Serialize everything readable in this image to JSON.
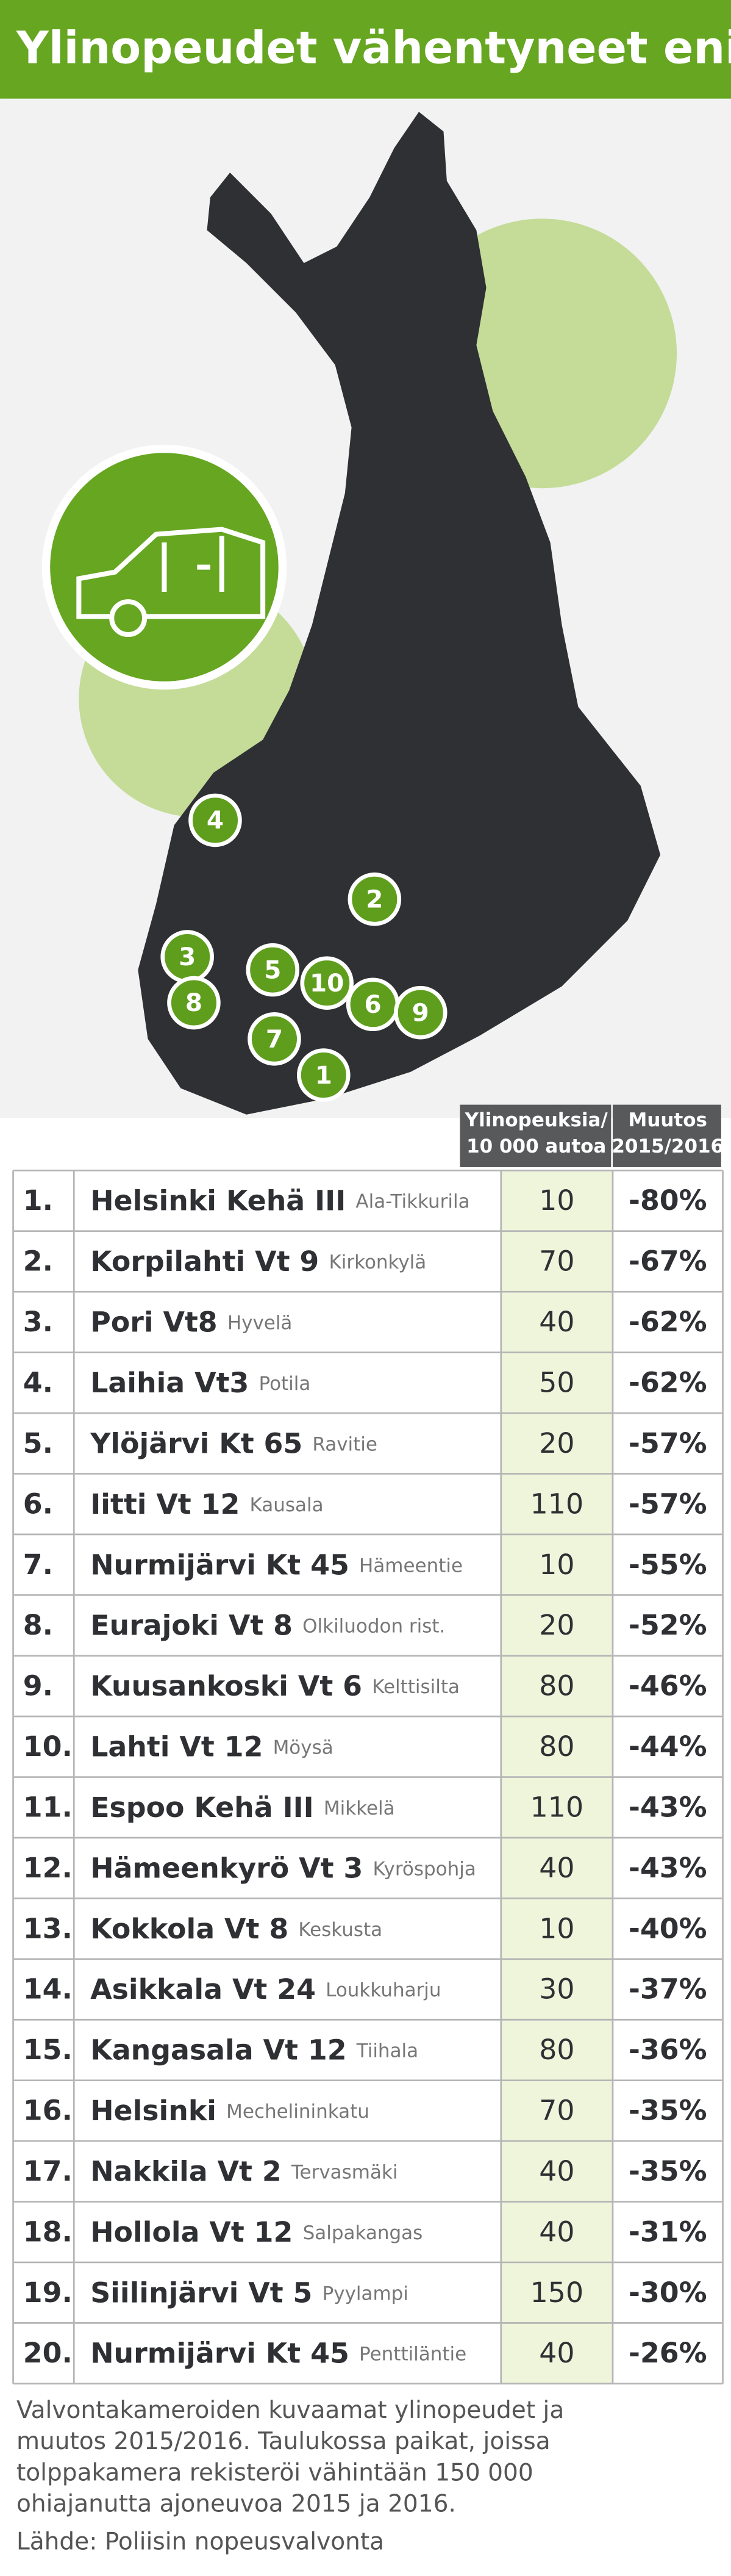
{
  "header": {
    "title": "Ylinopeudet vähentyneet eniten"
  },
  "map": {
    "markers": [
      "1",
      "2",
      "3",
      "4",
      "5",
      "6",
      "7",
      "8",
      "9",
      "10"
    ]
  },
  "table": {
    "columns": [
      [
        "Ylinopeuksia/",
        "10 000 autoa"
      ],
      [
        "Muutos",
        "2015/2016"
      ]
    ],
    "rows": [
      [
        "1.",
        "Helsinki Kehä III",
        "Ala-Tikkurila",
        "10",
        "-80%"
      ],
      [
        "2.",
        "Korpilahti Vt 9",
        "Kirkonkylä",
        "70",
        "-67%"
      ],
      [
        "3.",
        "Pori Vt8",
        "Hyvelä",
        "40",
        "-62%"
      ],
      [
        "4.",
        "Laihia Vt3",
        "Potila",
        "50",
        "-62%"
      ],
      [
        "5.",
        "Ylöjärvi Kt 65",
        "Ravitie",
        "20",
        "-57%"
      ],
      [
        "6.",
        "Iitti Vt 12",
        "Kausala",
        "110",
        "-57%"
      ],
      [
        "7.",
        "Nurmijärvi Kt 45",
        "Hämeentie",
        "10",
        "-55%"
      ],
      [
        "8.",
        "Eurajoki Vt 8",
        "Olkiluodon rist.",
        "20",
        "-52%"
      ],
      [
        "9.",
        "Kuusankoski Vt 6",
        "Kelttisilta",
        "80",
        "-46%"
      ],
      [
        "10.",
        "Lahti Vt 12",
        "Möysä",
        "80",
        "-44%"
      ],
      [
        "11.",
        "Espoo Kehä III",
        "Mikkelä",
        "110",
        "-43%"
      ],
      [
        "12.",
        "Hämeenkyrö Vt 3",
        "Kyröspohja",
        "40",
        "-43%"
      ],
      [
        "13.",
        "Kokkola Vt 8",
        "Keskusta",
        "10",
        "-40%"
      ],
      [
        "14.",
        "Asikkala Vt 24",
        "Loukkuharju",
        "30",
        "-37%"
      ],
      [
        "15.",
        "Kangasala Vt 12",
        "Tiihala",
        "80",
        "-36%"
      ],
      [
        "16.",
        "Helsinki",
        "Mechelininkatu",
        "70",
        "-35%"
      ],
      [
        "17.",
        "Nakkila Vt 2",
        "Tervasmäki",
        "40",
        "-35%"
      ],
      [
        "18.",
        "Hollola Vt 12",
        "Salpakangas",
        "40",
        "-31%"
      ],
      [
        "19.",
        "Siilinjärvi Vt 5",
        "Pyylampi",
        "150",
        "-30%"
      ],
      [
        "20.",
        "Nurmijärvi Kt 45",
        "Penttiläntie",
        "40",
        "-26%"
      ]
    ]
  },
  "footer": {
    "lines": [
      "Valvontakameroiden kuvaamat ylinopeudet ja",
      "muutos 2015/2016. Taulukossa paikat, joissa",
      "tolppakamera rekisteröi vähintään 150 000",
      "ohiajanutta ajoneuvoa 2015 ja 2016."
    ],
    "source": "Lähde: Poliisin nopeusvalvonta"
  }
}
